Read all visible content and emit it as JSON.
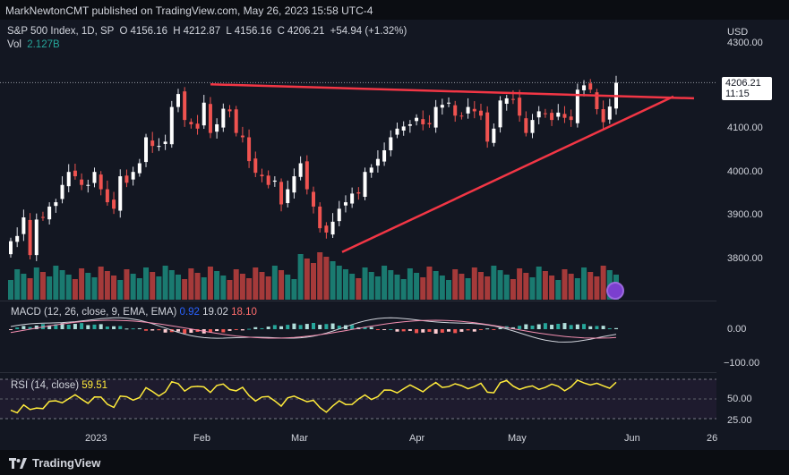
{
  "publisher": "MarkNewtonCMT published on TradingView.com, May 26, 2023 15:58 UTC-4",
  "legend": {
    "symbol": "S&P 500 Index, 1D, SP",
    "o_label": "O",
    "o_val": "4156.16",
    "h_label": "H",
    "h_val": "4212.87",
    "l_label": "L",
    "l_val": "4156.16",
    "c_label": "C",
    "c_val": "4206.21",
    "change": "+54.94 (+1.32%)",
    "vol_label": "Vol",
    "vol_val": "2.127B"
  },
  "currency": "USD",
  "price_tag": {
    "price": "4206.21",
    "countdown": "11:15"
  },
  "price_axis": [
    "4300.00",
    "4100.00",
    "4000.00",
    "3900.00",
    "3800.00"
  ],
  "macd": {
    "label": "MACD (12, 26, close, 9, EMA, EMA)",
    "val1": "0.92",
    "val2": "19.02",
    "val3": "18.10",
    "axis": [
      "0.00",
      "−100.00"
    ]
  },
  "rsi": {
    "label": "RSI (14, close)",
    "value": "59.51",
    "axis": [
      "50.00",
      "25.00"
    ]
  },
  "time_axis": [
    "2023",
    "Feb",
    "Mar",
    "Apr",
    "May",
    "Jun",
    "26"
  ],
  "brand": "TradingView",
  "colors": {
    "up": "#26a69a",
    "down": "#ef5350",
    "trendline": "#f23645",
    "rsi": "#ffeb3b",
    "background": "#131722"
  },
  "chart_data": {
    "type": "candlestick",
    "title": "S&P 500 Index, 1D, SP",
    "ylim": [
      3720,
      4320
    ],
    "trendlines": [
      {
        "from": [
          "2023-02-02",
          4190
        ],
        "to": [
          "2023-06-16",
          4170
        ]
      },
      {
        "from": [
          "2023-03-13",
          3815
        ],
        "to": [
          "2023-06-13",
          4170
        ]
      }
    ],
    "ohlc_close": [
      3840,
      3852,
      3895,
      3808,
      3890,
      3895,
      3920,
      3930,
      3970,
      4000,
      3990,
      3970,
      3970,
      4000,
      3960,
      3930,
      3915,
      3990,
      3975,
      4000,
      4020,
      4080,
      4060,
      4060,
      4070,
      4150,
      4180,
      4120,
      4110,
      4100,
      4160,
      4090,
      4110,
      4146,
      4140,
      4090,
      4080,
      4025,
      3998,
      3990,
      3970,
      3980,
      3925,
      3960,
      3990,
      4020,
      3960,
      3920,
      3870,
      3860,
      3885,
      3915,
      3930,
      3950,
      3950,
      4000,
      4010,
      4030,
      4050,
      4080,
      4100,
      4105,
      4110,
      4125,
      4110,
      4110,
      4150,
      4155,
      4160,
      4130,
      4129,
      4150,
      4140,
      4130,
      4070,
      4100,
      4165,
      4170,
      4167,
      4130,
      4090,
      4120,
      4140,
      4135,
      4120,
      4137,
      4125,
      4120,
      4190,
      4200,
      4190,
      4145,
      4115,
      4151,
      4206
    ]
  }
}
